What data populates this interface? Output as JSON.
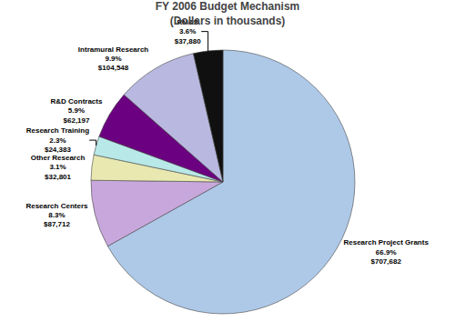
{
  "chart_data": {
    "type": "pie",
    "title": "FY 2006 Budget Mechanism\n(Dollars in thousands)",
    "categories": [
      "Research Project Grants",
      "Research Centers",
      "Other Research",
      "Research Training",
      "R&D Contracts",
      "Intramural Research",
      "RM&S"
    ],
    "values": [
      66.9,
      8.3,
      3.1,
      2.3,
      5.9,
      9.9,
      3.6
    ],
    "value_labels": [
      "66.9%",
      "8.3%",
      "3.1%",
      "2.3%",
      "5.9%",
      "9.9%",
      "3.6%"
    ],
    "amount_labels": [
      "$707,682",
      "$87,712",
      "$32,801",
      "$24,383",
      "$62,197",
      "$104,548",
      "$37,880"
    ],
    "colors": [
      "#aec9e8",
      "#c8a8dc",
      "#e8e8b0",
      "#b8e8e8",
      "#6b0080",
      "#b8b8e0",
      "#101010"
    ],
    "data_labels": true
  }
}
